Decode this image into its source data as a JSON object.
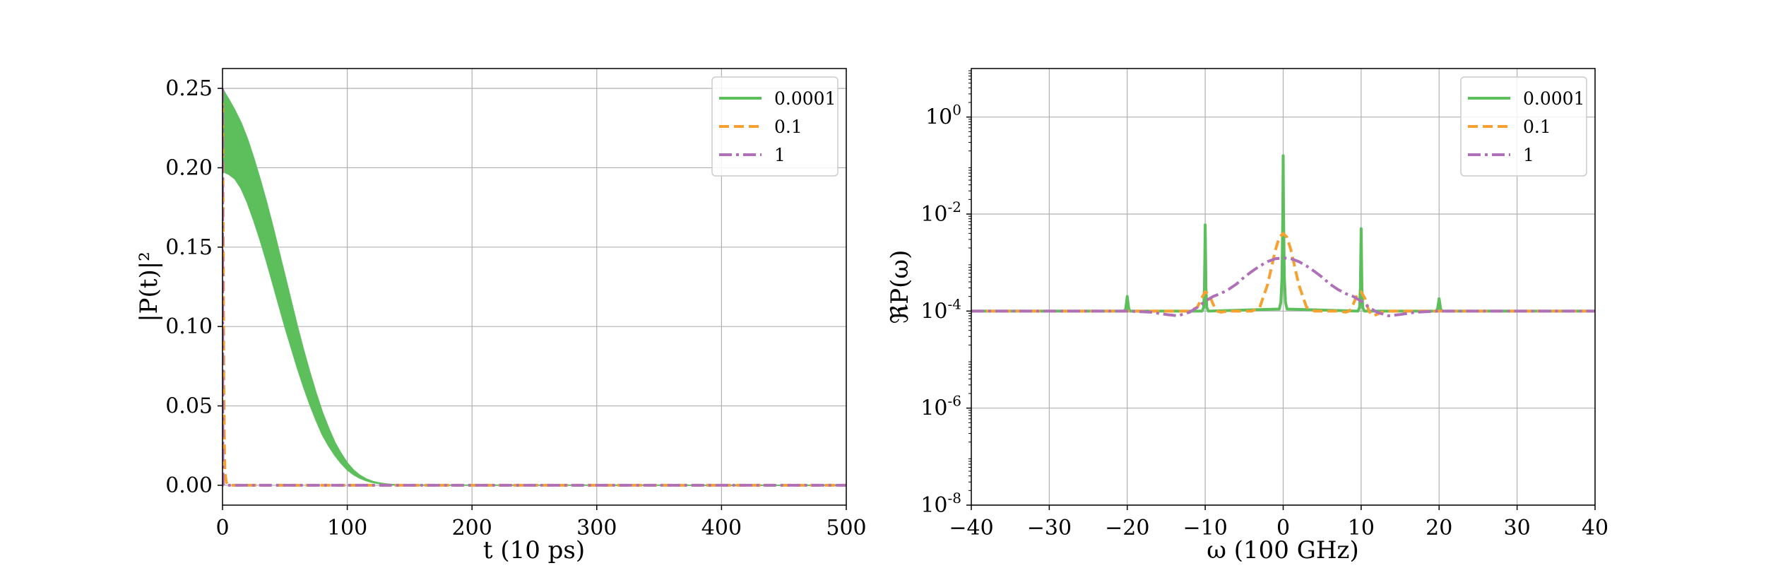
{
  "chart_data": [
    {
      "type": "line",
      "xlabel": "t (10 ps)",
      "ylabel": "|P(t)|²",
      "xlim": [
        0,
        500
      ],
      "ylim": [
        -0.0125,
        0.2625
      ],
      "xticks": [
        0,
        100,
        200,
        300,
        400,
        500
      ],
      "xtick_labels": [
        "0",
        "100",
        "200",
        "300",
        "400",
        "500"
      ],
      "yticks": [
        0.0,
        0.05,
        0.1,
        0.15,
        0.2,
        0.25
      ],
      "ytick_labels": [
        "0.00",
        "0.05",
        "0.10",
        "0.15",
        "0.20",
        "0.25"
      ],
      "grid": true,
      "legend_position": "top-right",
      "series": [
        {
          "name": "0.0001",
          "color": "#5cbf5c",
          "style": "solid",
          "render": "band",
          "x": [
            0,
            2,
            5,
            10,
            15,
            20,
            25,
            30,
            35,
            40,
            45,
            50,
            55,
            60,
            65,
            70,
            75,
            80,
            85,
            90,
            95,
            100,
            105,
            110,
            115,
            120,
            125,
            130,
            135,
            140,
            150,
            500
          ],
          "upper": [
            0.25,
            0.247,
            0.243,
            0.236,
            0.228,
            0.218,
            0.206,
            0.193,
            0.179,
            0.164,
            0.148,
            0.132,
            0.116,
            0.1,
            0.085,
            0.071,
            0.058,
            0.046,
            0.036,
            0.027,
            0.02,
            0.014,
            0.0095,
            0.0063,
            0.004,
            0.0025,
            0.0015,
            0.0009,
            0.0005,
            0.0003,
            0.0001,
            0.0
          ],
          "lower": [
            0.2,
            0.197,
            0.196,
            0.193,
            0.187,
            0.178,
            0.167,
            0.155,
            0.142,
            0.128,
            0.114,
            0.1,
            0.087,
            0.074,
            0.062,
            0.051,
            0.041,
            0.032,
            0.025,
            0.019,
            0.014,
            0.0098,
            0.0068,
            0.0046,
            0.003,
            0.0019,
            0.0012,
            0.0007,
            0.0004,
            0.0002,
            0.0001,
            0.0
          ]
        },
        {
          "name": "0.1",
          "color": "#f7a030",
          "style": "dashed",
          "x": [
            0,
            0.5,
            1,
            1.5,
            2,
            3,
            4,
            6,
            8,
            500
          ],
          "y": [
            0.25,
            0.17,
            0.07,
            0.025,
            0.008,
            0.002,
            0.0006,
            0.0001,
            0.0,
            0.0
          ]
        },
        {
          "name": "1",
          "color": "#b070b8",
          "style": "dashdot",
          "x": [
            0,
            0.1,
            0.2,
            0.3,
            0.5,
            1,
            500
          ],
          "y": [
            0.25,
            0.12,
            0.04,
            0.01,
            0.001,
            0.0,
            0.0
          ]
        }
      ]
    },
    {
      "type": "line",
      "xlabel": "ω (100 GHz)",
      "ylabel": "ℜP(ω)",
      "yscale": "log",
      "xlim": [
        -40,
        40
      ],
      "ylim": [
        1e-08,
        10
      ],
      "xticks": [
        -40,
        -30,
        -20,
        -10,
        0,
        10,
        20,
        30,
        40
      ],
      "xtick_labels": [
        "−40",
        "−30",
        "−20",
        "−10",
        "0",
        "10",
        "20",
        "30",
        "40"
      ],
      "yticks": [
        1e-08,
        1e-06,
        0.0001,
        0.01,
        1
      ],
      "ytick_labels": [
        {
          "base": "10",
          "exp": "-8"
        },
        {
          "base": "10",
          "exp": "-6"
        },
        {
          "base": "10",
          "exp": "-4"
        },
        {
          "base": "10",
          "exp": "-2"
        },
        {
          "base": "10",
          "exp": "0"
        }
      ],
      "grid": true,
      "legend_position": "top-right",
      "series": [
        {
          "name": "0.0001",
          "color": "#5cbf5c",
          "style": "solid",
          "x": [
            -40,
            -20.4,
            -20.2,
            -20,
            -19.8,
            -19.6,
            -10.4,
            -10.2,
            -10.1,
            -10,
            -9.9,
            -9.8,
            -9.6,
            -0.5,
            -0.3,
            -0.15,
            -0.05,
            0,
            0.05,
            0.15,
            0.3,
            0.5,
            9.6,
            9.8,
            9.9,
            10,
            10.1,
            10.2,
            10.4,
            19.6,
            19.8,
            20,
            20.2,
            20.4,
            40
          ],
          "y": [
            0.0001,
            0.0001,
            0.00011,
            0.0002,
            0.00011,
            0.0001,
            0.0001,
            0.00012,
            0.0003,
            0.006,
            0.0003,
            0.00012,
            0.0001,
            0.00011,
            0.00015,
            0.0005,
            0.01,
            0.16,
            0.01,
            0.0005,
            0.00015,
            0.00011,
            0.0001,
            0.00012,
            0.0003,
            0.005,
            0.0003,
            0.00012,
            0.0001,
            0.0001,
            0.00011,
            0.00018,
            0.00011,
            0.0001,
            0.0001
          ]
        },
        {
          "name": "0.1",
          "color": "#f7a030",
          "style": "dashed",
          "x": [
            -40,
            -12,
            -11,
            -10.5,
            -10,
            -9.5,
            -9,
            -8.5,
            -8,
            -7,
            -6,
            -5,
            -4,
            -3,
            -2,
            -1.5,
            -1,
            -0.5,
            0,
            0.5,
            1,
            1.5,
            2,
            3,
            4,
            5,
            6,
            7,
            8,
            8.5,
            9,
            9.5,
            10,
            10.5,
            11,
            11.5,
            12,
            13,
            40
          ],
          "y": [
            0.0001,
            0.0001,
            0.00012,
            0.00018,
            0.00025,
            0.00022,
            0.00014,
            0.0001,
            9.5e-05,
            0.0001,
            0.0001,
            0.0001,
            0.0001,
            0.00012,
            0.00035,
            0.0008,
            0.0018,
            0.0033,
            0.004,
            0.0033,
            0.0018,
            0.0008,
            0.00035,
            0.00012,
            0.0001,
            0.0001,
            0.0001,
            0.0001,
            9.5e-05,
            0.0001,
            0.00014,
            0.00022,
            0.00025,
            0.00018,
            0.0001,
            8e-05,
            8.5e-05,
            0.0001,
            0.0001
          ]
        },
        {
          "name": "1",
          "color": "#b070b8",
          "style": "dashdot",
          "x": [
            -40,
            -20,
            -17,
            -15,
            -13.5,
            -12,
            -11,
            -10,
            -9,
            -8,
            -7,
            -6,
            -5,
            -4,
            -3,
            -2,
            -1,
            0,
            1,
            2,
            3,
            4,
            5,
            6,
            7,
            8,
            9,
            10,
            11,
            12,
            13.5,
            15,
            17,
            20,
            40
          ],
          "y": [
            0.0001,
            0.0001,
            9.5e-05,
            8.5e-05,
            8e-05,
            9.5e-05,
            0.00012,
            0.00016,
            0.0002,
            0.00023,
            0.00028,
            0.00036,
            0.0005,
            0.00066,
            0.00085,
            0.00105,
            0.0012,
            0.00125,
            0.0012,
            0.00105,
            0.00085,
            0.00066,
            0.0005,
            0.00036,
            0.00028,
            0.00023,
            0.0002,
            0.00016,
            0.00012,
            9.5e-05,
            8e-05,
            8.5e-05,
            9.5e-05,
            0.0001,
            0.0001
          ]
        }
      ]
    }
  ]
}
